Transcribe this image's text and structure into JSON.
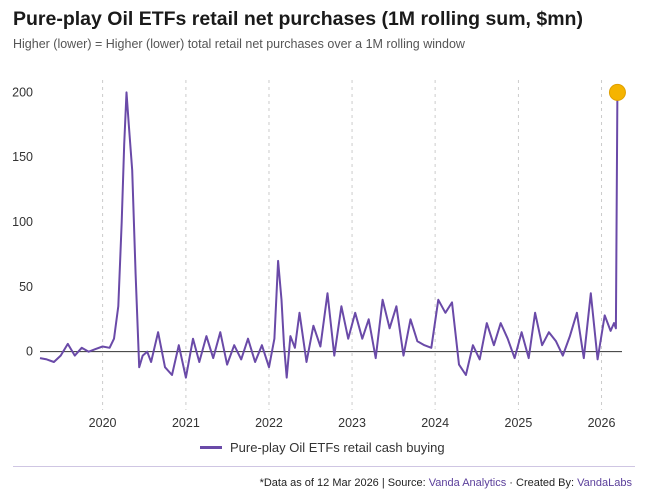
{
  "header": {
    "title": "Pure-play Oil ETFs retail net purchases (1M rolling sum, $mn)",
    "subtitle": "Higher (lower) = Higher (lower) total retail net purchases over a 1M rolling window"
  },
  "legend": {
    "label": "Pure-play Oil ETFs retail cash buying"
  },
  "footer": {
    "prefix": "*Data as of 12 Mar 2026 | Source: ",
    "source": "Vanda Analytics",
    "sep": " · Created By: ",
    "creator": "VandaLabs"
  },
  "colors": {
    "series": "#6a4aa8",
    "marker": "#f5b400",
    "zero_line": "#333333",
    "grid": "#cccccc"
  },
  "chart_data": {
    "type": "line",
    "title": "Pure-play Oil ETFs retail net purchases (1M rolling sum, $mn)",
    "ylim": [
      -45,
      225
    ],
    "yticks": [
      0,
      50,
      100,
      150,
      200
    ],
    "xlim": [
      "2019-04-01",
      "2026-04-01"
    ],
    "xticks": [
      "2020",
      "2021",
      "2022",
      "2023",
      "2024",
      "2025",
      "2026"
    ],
    "grid": {
      "x": true,
      "y": false
    },
    "zero_line": true,
    "legend_position": "bottom",
    "series": [
      {
        "name": "Pure-play Oil ETFs retail cash buying",
        "x": [
          "2019-04-01",
          "2019-05-01",
          "2019-06-01",
          "2019-07-01",
          "2019-08-01",
          "2019-09-01",
          "2019-10-01",
          "2019-11-01",
          "2019-12-01",
          "2020-01-01",
          "2020-02-01",
          "2020-02-20",
          "2020-03-10",
          "2020-03-25",
          "2020-04-05",
          "2020-04-15",
          "2020-04-25",
          "2020-05-10",
          "2020-05-25",
          "2020-06-10",
          "2020-06-25",
          "2020-07-15",
          "2020-08-01",
          "2020-09-01",
          "2020-10-01",
          "2020-11-01",
          "2020-12-01",
          "2021-01-01",
          "2021-02-01",
          "2021-03-01",
          "2021-04-01",
          "2021-05-01",
          "2021-06-01",
          "2021-07-01",
          "2021-08-01",
          "2021-09-01",
          "2021-10-01",
          "2021-11-01",
          "2021-12-01",
          "2022-01-01",
          "2022-01-25",
          "2022-02-10",
          "2022-02-25",
          "2022-03-08",
          "2022-03-20",
          "2022-04-05",
          "2022-04-25",
          "2022-05-15",
          "2022-06-15",
          "2022-07-15",
          "2022-08-15",
          "2022-09-15",
          "2022-10-15",
          "2022-11-15",
          "2022-12-15",
          "2023-01-15",
          "2023-02-15",
          "2023-03-15",
          "2023-04-15",
          "2023-05-15",
          "2023-06-15",
          "2023-07-15",
          "2023-08-15",
          "2023-09-15",
          "2023-10-15",
          "2023-11-15",
          "2023-12-15",
          "2024-01-15",
          "2024-02-15",
          "2024-03-15",
          "2024-04-15",
          "2024-05-15",
          "2024-06-15",
          "2024-07-15",
          "2024-08-15",
          "2024-09-15",
          "2024-10-15",
          "2024-11-15",
          "2024-12-15",
          "2025-01-15",
          "2025-02-15",
          "2025-03-15",
          "2025-04-15",
          "2025-05-15",
          "2025-06-15",
          "2025-07-15",
          "2025-08-15",
          "2025-09-15",
          "2025-10-15",
          "2025-11-15",
          "2025-12-15",
          "2026-01-15",
          "2026-02-10",
          "2026-02-25",
          "2026-03-05",
          "2026-03-12"
        ],
        "values": [
          -5,
          -6,
          -8,
          -3,
          6,
          -3,
          3,
          0,
          2,
          4,
          3,
          10,
          35,
          100,
          160,
          200,
          175,
          140,
          60,
          -12,
          -3,
          0,
          -8,
          15,
          -12,
          -18,
          5,
          -20,
          10,
          -8,
          12,
          -5,
          15,
          -10,
          5,
          -6,
          10,
          -8,
          5,
          -12,
          10,
          70,
          40,
          5,
          -20,
          12,
          3,
          30,
          -8,
          20,
          4,
          45,
          -3,
          35,
          10,
          30,
          10,
          25,
          -5,
          40,
          18,
          35,
          -3,
          25,
          8,
          5,
          3,
          40,
          30,
          38,
          -10,
          -18,
          5,
          -6,
          22,
          5,
          22,
          10,
          -5,
          15,
          -5,
          30,
          5,
          15,
          8,
          -3,
          12,
          30,
          -5,
          45,
          -6,
          28,
          16,
          22,
          18,
          200
        ]
      }
    ]
  }
}
